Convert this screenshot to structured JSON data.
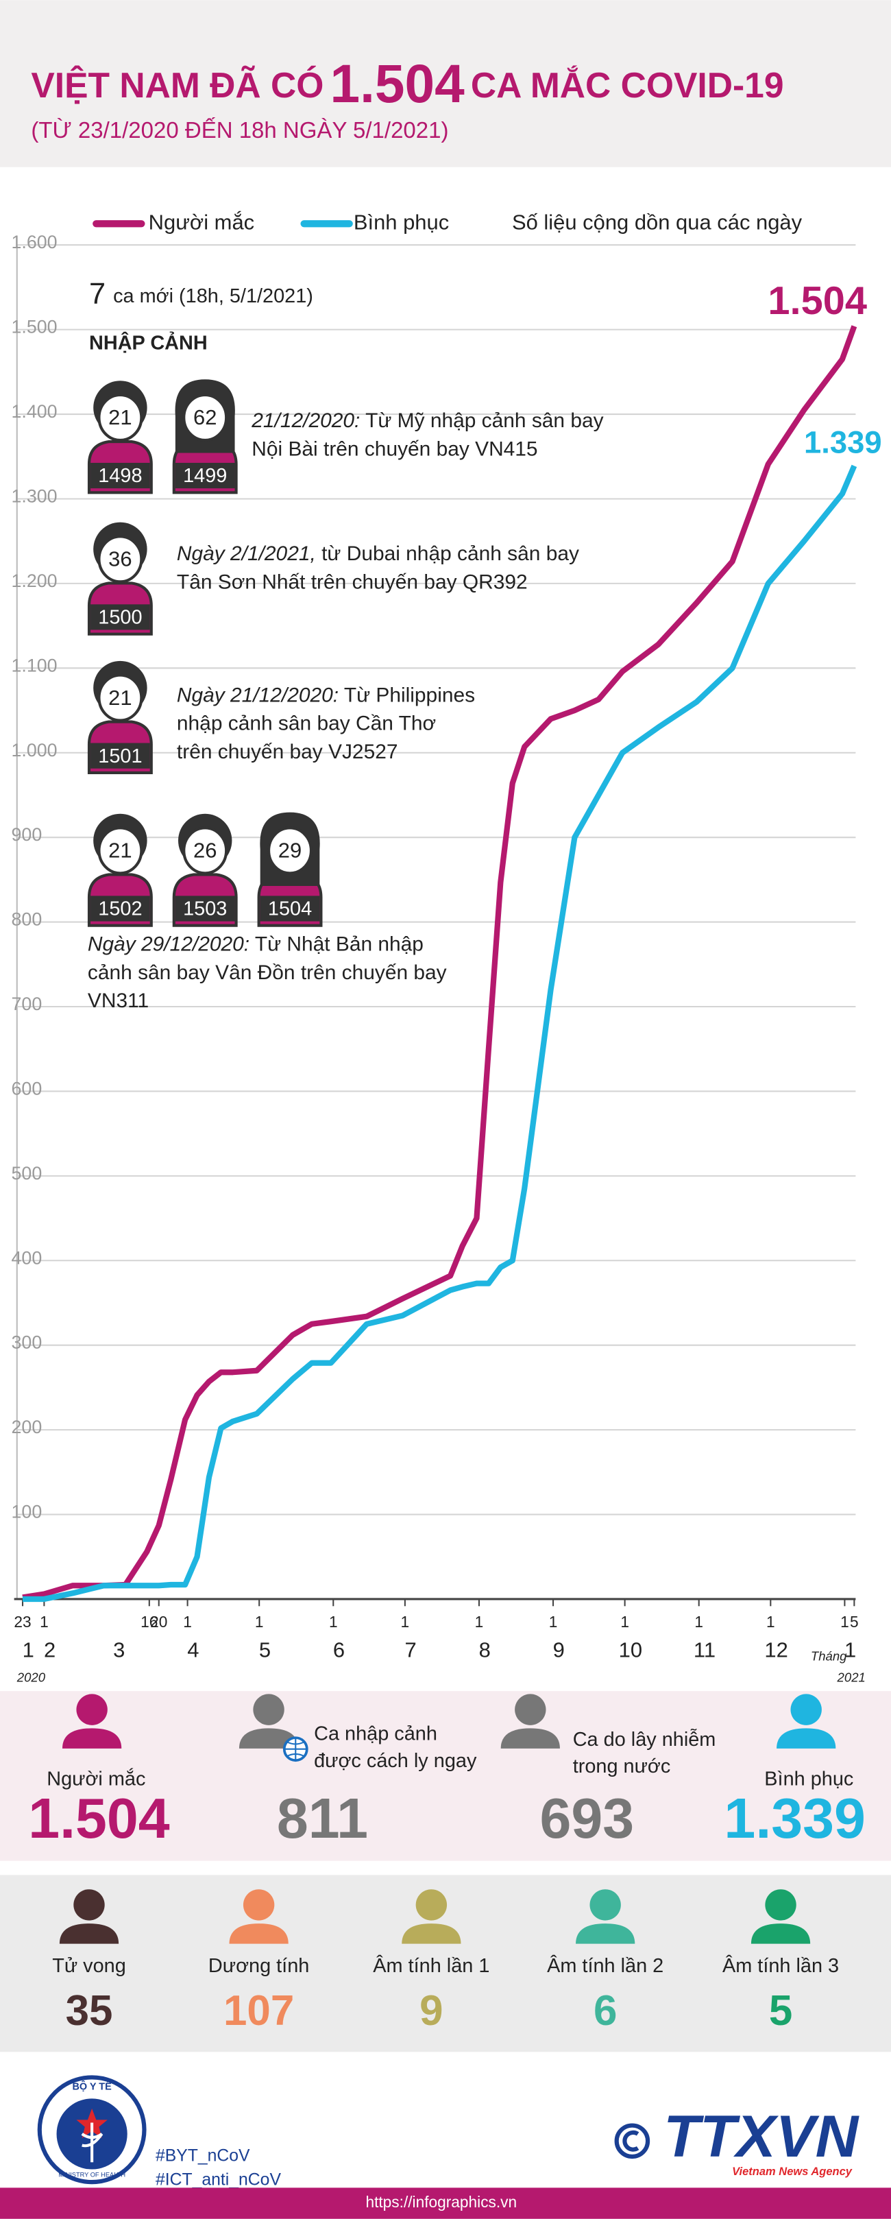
{
  "header": {
    "title_pre": "VIỆT NAM ĐÃ CÓ",
    "title_number": "1.504",
    "title_post": "CA MẮC COVID-19",
    "subtitle": "(TỪ 23/1/2020 ĐẾN 18h NGÀY 5/1/2021)"
  },
  "chart_data": {
    "type": "line",
    "note": "Số liệu cộng dồn qua các ngày",
    "x": [
      "2020-01-23",
      "2020-02-01",
      "2020-02-13",
      "2020-02-26",
      "2020-03-06",
      "2020-03-15",
      "2020-03-20",
      "2020-03-25",
      "2020-03-31",
      "2020-04-05",
      "2020-04-10",
      "2020-04-15",
      "2020-04-20",
      "2020-04-30",
      "2020-05-15",
      "2020-05-23",
      "2020-05-31",
      "2020-06-15",
      "2020-06-30",
      "2020-07-20",
      "2020-07-25",
      "2020-07-31",
      "2020-08-05",
      "2020-08-10",
      "2020-08-15",
      "2020-08-20",
      "2020-08-31",
      "2020-09-10",
      "2020-09-20",
      "2020-09-30",
      "2020-10-15",
      "2020-10-31",
      "2020-11-15",
      "2020-11-30",
      "2020-12-15",
      "2020-12-31",
      "2021-01-05"
    ],
    "series": [
      {
        "name": "Người mắc",
        "color": "#b5196e",
        "values": [
          2,
          6,
          16,
          16,
          17,
          56,
          87,
          141,
          212,
          241,
          257,
          268,
          268,
          270,
          312,
          325,
          328,
          334,
          355,
          382,
          417,
          450,
          650,
          847,
          964,
          1007,
          1040,
          1050,
          1063,
          1096,
          1128,
          1177,
          1226,
          1341,
          1405,
          1465,
          1504
        ],
        "value_labels": [
          null,
          null,
          null,
          null,
          null,
          null,
          null,
          null,
          null,
          null,
          null,
          null,
          null,
          null,
          null,
          null,
          null,
          null,
          null,
          null,
          null,
          null,
          null,
          null,
          null,
          null,
          null,
          null,
          null,
          null,
          null,
          null,
          null,
          null,
          null,
          null,
          "1.504"
        ]
      },
      {
        "name": "Bình phục",
        "color": "#1fb5e0",
        "values": [
          0,
          0,
          7,
          16,
          16,
          16,
          16,
          17,
          17,
          50,
          144,
          202,
          210,
          219,
          260,
          279,
          279,
          325,
          335,
          365,
          369,
          373,
          373,
          392,
          400,
          485,
          720,
          900,
          950,
          1000,
          1030,
          1060,
          1100,
          1200,
          1250,
          1306,
          1339
        ],
        "value_labels": [
          null,
          null,
          null,
          null,
          null,
          null,
          null,
          null,
          null,
          null,
          null,
          null,
          null,
          null,
          null,
          null,
          null,
          null,
          null,
          null,
          null,
          null,
          null,
          null,
          null,
          null,
          null,
          null,
          null,
          null,
          null,
          null,
          null,
          null,
          null,
          null,
          "1.339"
        ]
      }
    ],
    "xlim": [
      "2020-01-23",
      "2021-01-05"
    ],
    "xticks": [
      {
        "value": "2020-01-23",
        "label": "23"
      },
      {
        "value": "2020-02-01",
        "label": "1"
      },
      {
        "value": "2020-03-16",
        "label": "16"
      },
      {
        "value": "2020-03-20",
        "label": "20"
      },
      {
        "value": "2020-04-01",
        "label": "1"
      },
      {
        "value": "2020-05-01",
        "label": "1"
      },
      {
        "value": "2020-06-01",
        "label": "1"
      },
      {
        "value": "2020-07-01",
        "label": "1"
      },
      {
        "value": "2020-08-01",
        "label": "1"
      },
      {
        "value": "2020-09-01",
        "label": "1"
      },
      {
        "value": "2020-10-01",
        "label": "1"
      },
      {
        "value": "2020-11-01",
        "label": "1"
      },
      {
        "value": "2020-12-01",
        "label": "1"
      },
      {
        "value": "2021-01-01",
        "label": "1"
      },
      {
        "value": "2021-01-05",
        "label": "5"
      }
    ],
    "month_ticks": [
      {
        "value": "2020-01-23",
        "label": "1"
      },
      {
        "value": "2020-02-01",
        "label": "2"
      },
      {
        "value": "2020-03-01",
        "label": "3"
      },
      {
        "value": "2020-04-01",
        "label": "4"
      },
      {
        "value": "2020-05-01",
        "label": "5"
      },
      {
        "value": "2020-06-01",
        "label": "6"
      },
      {
        "value": "2020-07-01",
        "label": "7"
      },
      {
        "value": "2020-08-01",
        "label": "8"
      },
      {
        "value": "2020-09-01",
        "label": "9"
      },
      {
        "value": "2020-10-01",
        "label": "10"
      },
      {
        "value": "2020-11-01",
        "label": "11"
      },
      {
        "value": "2020-12-01",
        "label": "12"
      },
      {
        "value": "2021-01-01",
        "label": "1"
      }
    ],
    "year_labels": [
      "2020",
      "2021"
    ],
    "month_word": "Tháng",
    "ylim": [
      0,
      1600
    ],
    "yticks": [
      100,
      200,
      300,
      400,
      500,
      600,
      700,
      800,
      900,
      {
        "value": 1000,
        "label": "1.000"
      },
      {
        "value": 1100,
        "label": "1.100"
      },
      {
        "value": 1200,
        "label": "1.200"
      },
      {
        "value": 1300,
        "label": "1.300"
      },
      {
        "value": 1400,
        "label": "1.400"
      },
      {
        "value": 1500,
        "label": "1.500"
      },
      {
        "value": 1600,
        "label": "1.600"
      }
    ],
    "grid": true
  },
  "cases": {
    "count": "7",
    "count_text": "ca mới (18h, 5/1/2021)",
    "heading": "NHẬP CẢNH",
    "groups": [
      {
        "patients": [
          {
            "age": 21,
            "id": 1498
          },
          {
            "age": 62,
            "id": 1499
          }
        ],
        "date": "21/12/2020:",
        "lines": [
          " Từ Mỹ nhập cảnh sân bay",
          "Nội Bài trên chuyến bay VN415"
        ]
      },
      {
        "patients": [
          {
            "age": 36,
            "id": 1500
          }
        ],
        "date": "Ngày 2/1/2021,",
        "lines": [
          " từ Dubai nhập cảnh sân bay",
          "Tân Sơn Nhất trên chuyến bay QR392"
        ]
      },
      {
        "patients": [
          {
            "age": 21,
            "id": 1501
          }
        ],
        "date": "Ngày 21/12/2020:",
        "lines": [
          " Từ Philippines",
          "nhập cảnh sân bay Cần Thơ",
          "trên chuyến bay VJ2527"
        ]
      },
      {
        "patients": [
          {
            "age": 21,
            "id": 1502
          },
          {
            "age": 26,
            "id": 1503
          },
          {
            "age": 29,
            "id": 1504
          }
        ],
        "date": "Ngày 29/12/2020:",
        "lines": [
          " Từ Nhật Bản nhập",
          "cảnh sân bay Vân Đồn trên chuyến bay",
          "VN311"
        ]
      }
    ]
  },
  "summary": [
    {
      "label": [
        "Người mắc"
      ],
      "value": "1.504",
      "color": "#b5196e"
    },
    {
      "label": [
        "Ca nhập cảnh",
        "được cách ly ngay"
      ],
      "value": "811",
      "color": "#777777"
    },
    {
      "label": [
        "Ca do lây nhiễm",
        "trong nước"
      ],
      "value": "693",
      "color": "#777777"
    },
    {
      "label": [
        "Bình phục"
      ],
      "value": "1.339",
      "color": "#1fb5e0"
    }
  ],
  "status": [
    {
      "label": "Tử vong",
      "value": "35",
      "color": "#4a3030"
    },
    {
      "label": "Dương tính",
      "value": "107",
      "color": "#f08a5d"
    },
    {
      "label": "Âm tính lần 1",
      "value": "9",
      "color": "#b8ac5a"
    },
    {
      "label": "Âm tính lần 2",
      "value": "6",
      "color": "#3fb59b"
    },
    {
      "label": "Âm tính lần 3",
      "value": "5",
      "color": "#1aa36b"
    }
  ],
  "footer": {
    "ministry": "BỘ Y TẾ",
    "ministry_en": "MINISTRY OF HEALTH",
    "hashtags": [
      "#BYT_nCoV",
      "#ICT_anti_nCoV"
    ],
    "agency": "TTXVN",
    "agency_en": "Vietnam News Agency",
    "url": "https://infographics.vn"
  }
}
